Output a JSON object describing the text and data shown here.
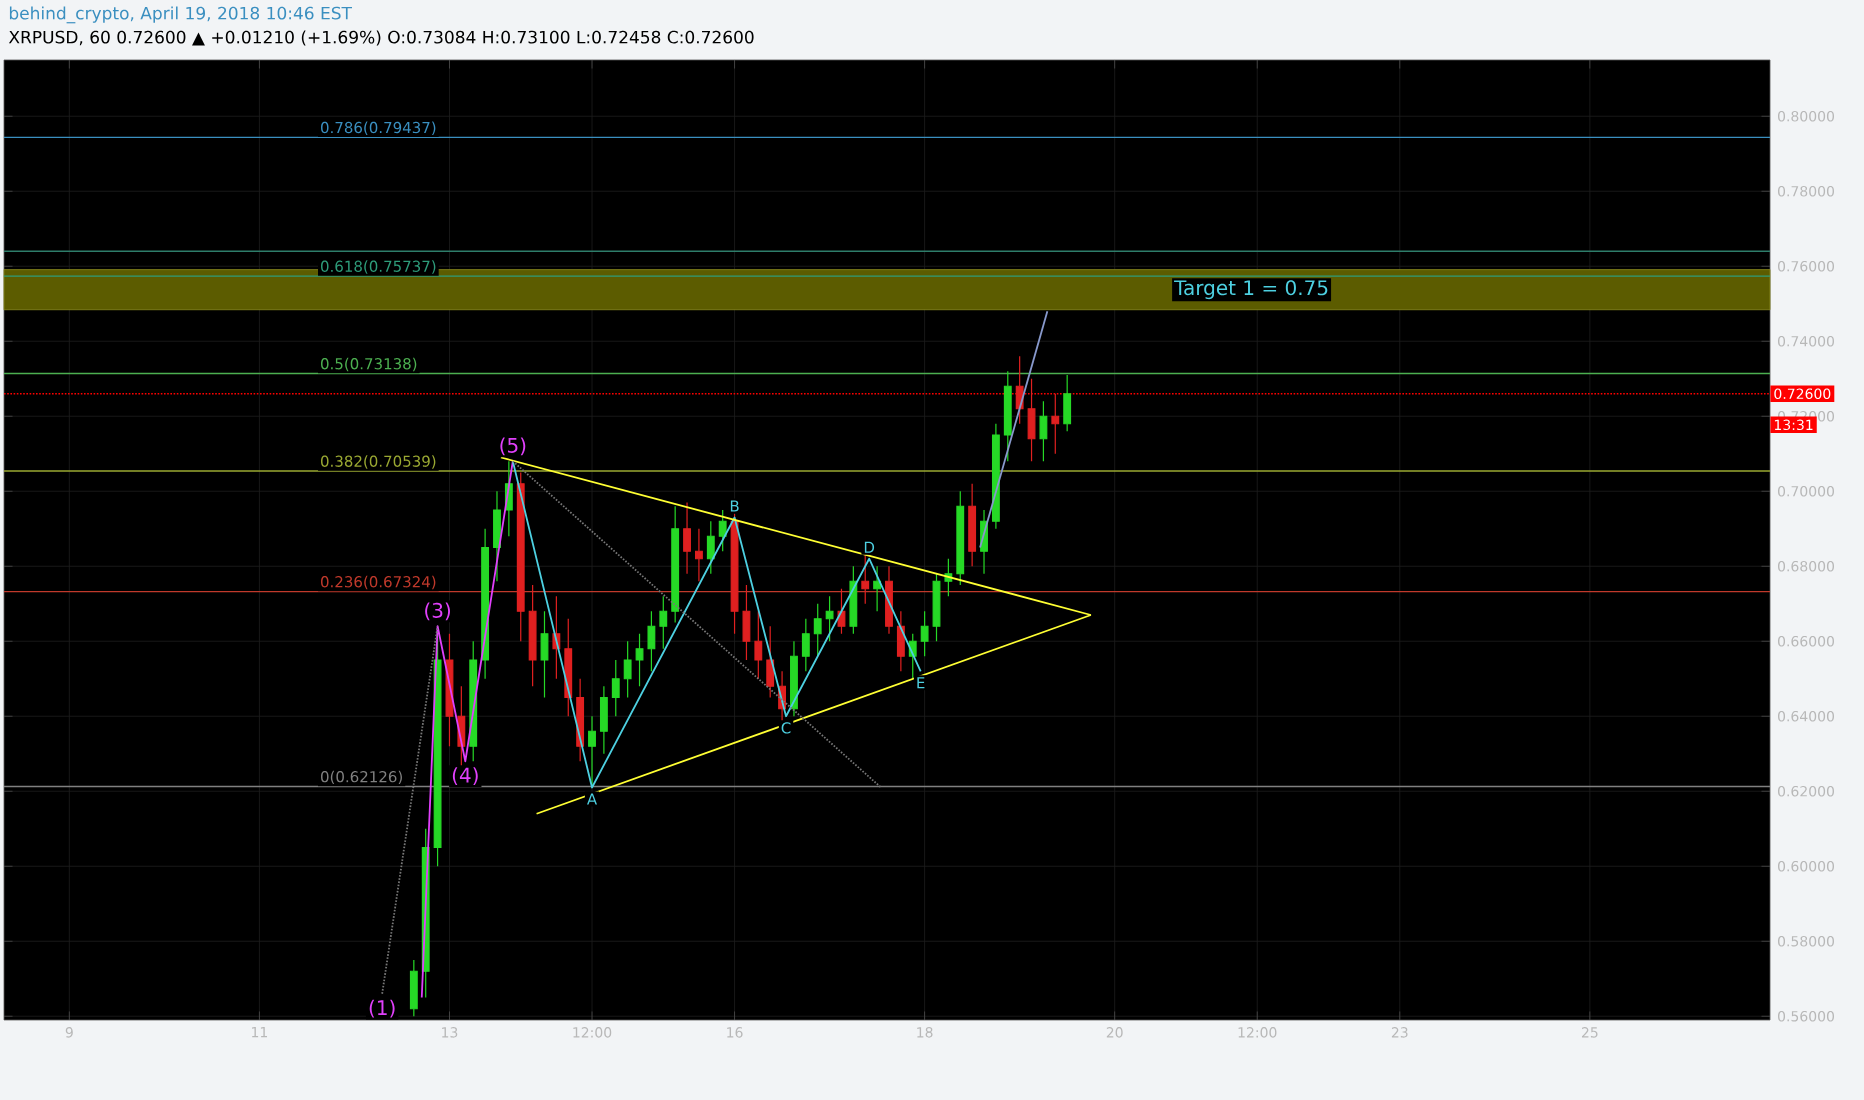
{
  "chart_data": {
    "type": "candlestick",
    "title": "behind_crypto, April 19, 2018 10:46 EST",
    "subtitle": "XRPUSD, 60 0.72600 ▲ +0.01210 (+1.69%) O:0.73084 H:0.73100 L:0.72458 C:0.72600",
    "x": [
      "2018-04-12T15:00",
      "2018-04-12T18:00",
      "2018-04-12T21:00",
      "2018-04-13T00:00",
      "2018-04-13T03:00",
      "2018-04-13T06:00",
      "2018-04-13T09:00",
      "2018-04-13T12:00",
      "2018-04-13T15:00",
      "2018-04-13T18:00",
      "2018-04-13T21:00",
      "2018-04-14T00:00",
      "2018-04-14T03:00",
      "2018-04-14T06:00",
      "2018-04-14T09:00",
      "2018-04-14T12:00",
      "2018-04-14T15:00",
      "2018-04-14T18:00",
      "2018-04-14T21:00",
      "2018-04-15T00:00",
      "2018-04-15T03:00",
      "2018-04-15T06:00",
      "2018-04-15T09:00",
      "2018-04-15T12:00",
      "2018-04-15T15:00",
      "2018-04-15T18:00",
      "2018-04-15T21:00",
      "2018-04-16T00:00",
      "2018-04-16T03:00",
      "2018-04-16T06:00",
      "2018-04-16T09:00",
      "2018-04-16T12:00",
      "2018-04-16T15:00",
      "2018-04-16T18:00",
      "2018-04-16T21:00",
      "2018-04-17T00:00",
      "2018-04-17T03:00",
      "2018-04-17T06:00",
      "2018-04-17T09:00",
      "2018-04-17T12:00",
      "2018-04-17T15:00",
      "2018-04-17T18:00",
      "2018-04-17T21:00",
      "2018-04-18T00:00",
      "2018-04-18T03:00",
      "2018-04-18T06:00",
      "2018-04-18T09:00",
      "2018-04-18T12:00",
      "2018-04-18T15:00",
      "2018-04-18T18:00",
      "2018-04-18T21:00",
      "2018-04-19T00:00",
      "2018-04-19T03:00",
      "2018-04-19T06:00",
      "2018-04-19T09:00",
      "2018-04-19T12:00"
    ],
    "ohlc": [
      [
        0.562,
        0.575,
        0.56,
        0.572
      ],
      [
        0.572,
        0.61,
        0.565,
        0.605
      ],
      [
        0.605,
        0.664,
        0.6,
        0.655
      ],
      [
        0.655,
        0.662,
        0.632,
        0.64
      ],
      [
        0.64,
        0.648,
        0.626,
        0.632
      ],
      [
        0.632,
        0.66,
        0.628,
        0.655
      ],
      [
        0.655,
        0.69,
        0.65,
        0.685
      ],
      [
        0.685,
        0.7,
        0.676,
        0.695
      ],
      [
        0.695,
        0.708,
        0.688,
        0.702
      ],
      [
        0.702,
        0.705,
        0.66,
        0.668
      ],
      [
        0.668,
        0.675,
        0.648,
        0.655
      ],
      [
        0.655,
        0.668,
        0.645,
        0.662
      ],
      [
        0.662,
        0.672,
        0.65,
        0.658
      ],
      [
        0.658,
        0.666,
        0.64,
        0.645
      ],
      [
        0.645,
        0.65,
        0.628,
        0.632
      ],
      [
        0.632,
        0.64,
        0.621,
        0.636
      ],
      [
        0.636,
        0.648,
        0.63,
        0.645
      ],
      [
        0.645,
        0.655,
        0.64,
        0.65
      ],
      [
        0.65,
        0.66,
        0.645,
        0.655
      ],
      [
        0.655,
        0.662,
        0.648,
        0.658
      ],
      [
        0.658,
        0.668,
        0.652,
        0.664
      ],
      [
        0.664,
        0.672,
        0.658,
        0.668
      ],
      [
        0.668,
        0.696,
        0.665,
        0.69
      ],
      [
        0.69,
        0.697,
        0.678,
        0.684
      ],
      [
        0.684,
        0.69,
        0.676,
        0.682
      ],
      [
        0.682,
        0.692,
        0.678,
        0.688
      ],
      [
        0.688,
        0.695,
        0.684,
        0.692
      ],
      [
        0.692,
        0.694,
        0.662,
        0.668
      ],
      [
        0.668,
        0.675,
        0.655,
        0.66
      ],
      [
        0.66,
        0.668,
        0.65,
        0.655
      ],
      [
        0.655,
        0.664,
        0.645,
        0.648
      ],
      [
        0.648,
        0.652,
        0.638,
        0.642
      ],
      [
        0.642,
        0.66,
        0.64,
        0.656
      ],
      [
        0.656,
        0.666,
        0.652,
        0.662
      ],
      [
        0.662,
        0.67,
        0.656,
        0.666
      ],
      [
        0.666,
        0.672,
        0.66,
        0.668
      ],
      [
        0.668,
        0.674,
        0.662,
        0.664
      ],
      [
        0.664,
        0.68,
        0.662,
        0.676
      ],
      [
        0.676,
        0.683,
        0.67,
        0.674
      ],
      [
        0.674,
        0.68,
        0.668,
        0.676
      ],
      [
        0.676,
        0.68,
        0.662,
        0.664
      ],
      [
        0.664,
        0.668,
        0.652,
        0.656
      ],
      [
        0.656,
        0.662,
        0.65,
        0.66
      ],
      [
        0.66,
        0.668,
        0.656,
        0.664
      ],
      [
        0.664,
        0.678,
        0.66,
        0.676
      ],
      [
        0.676,
        0.682,
        0.672,
        0.678
      ],
      [
        0.678,
        0.7,
        0.675,
        0.696
      ],
      [
        0.696,
        0.702,
        0.68,
        0.684
      ],
      [
        0.684,
        0.695,
        0.678,
        0.692
      ],
      [
        0.692,
        0.718,
        0.69,
        0.715
      ],
      [
        0.715,
        0.732,
        0.708,
        0.728
      ],
      [
        0.728,
        0.736,
        0.718,
        0.722
      ],
      [
        0.722,
        0.73,
        0.708,
        0.714
      ],
      [
        0.714,
        0.724,
        0.708,
        0.72
      ],
      [
        0.72,
        0.726,
        0.71,
        0.718
      ],
      [
        0.718,
        0.731,
        0.716,
        0.726
      ]
    ],
    "colors": [
      "#26d926",
      "#26d926",
      "#26d926",
      "#e02020",
      "#e02020",
      "#26d926",
      "#26d926",
      "#26d926",
      "#26d926",
      "#e02020",
      "#e02020",
      "#26d926",
      "#e02020",
      "#e02020",
      "#e02020",
      "#26d926",
      "#26d926",
      "#26d926",
      "#26d926",
      "#26d926",
      "#26d926",
      "#26d926",
      "#26d926",
      "#e02020",
      "#e02020",
      "#26d926",
      "#26d926",
      "#e02020",
      "#e02020",
      "#e02020",
      "#e02020",
      "#e02020",
      "#26d926",
      "#26d926",
      "#26d926",
      "#26d926",
      "#e02020",
      "#26d926",
      "#e02020",
      "#26d926",
      "#e02020",
      "#e02020",
      "#26d926",
      "#26d926",
      "#26d926",
      "#26d926",
      "#26d926",
      "#e02020",
      "#26d926",
      "#26d926",
      "#26d926",
      "#e02020",
      "#e02020",
      "#26d926",
      "#e02020",
      "#26d926"
    ],
    "series": [
      {
        "type": "line",
        "color": "#777777",
        "line_style": "dotted",
        "x": [
          "2018-04-12T07:00",
          "2018-04-12T21:00"
        ],
        "values": [
          0.566,
          0.664
        ]
      },
      {
        "type": "line",
        "color": "#e040fb",
        "x": [
          "2018-04-12T17:00",
          "2018-04-12T21:00",
          "2018-04-13T04:00",
          "2018-04-13T16:00"
        ],
        "values": [
          0.565,
          0.664,
          0.628,
          0.708
        ]
      },
      {
        "type": "line",
        "color": "#4dd0e1",
        "x": [
          "2018-04-13T16:00",
          "2018-04-14T12:00",
          "2018-04-16T00:00",
          "2018-04-16T13:00",
          "2018-04-17T10:00",
          "2018-04-17T23:00"
        ],
        "values": [
          0.708,
          0.621,
          0.693,
          0.64,
          0.682,
          0.652
        ]
      },
      {
        "type": "line",
        "color": "#ffff33",
        "x": [
          "2018-04-13T13:00",
          "2018-04-19T18:00"
        ],
        "values": [
          0.709,
          0.667
        ]
      },
      {
        "type": "line",
        "color": "#ffff33",
        "x": [
          "2018-04-13T22:00",
          "2018-04-19T18:00"
        ],
        "values": [
          0.614,
          0.667
        ]
      },
      {
        "type": "line",
        "color": "#777777",
        "line_style": "dotted",
        "x": [
          "2018-04-13T16:00",
          "2018-04-17T13:00"
        ],
        "values": [
          0.708,
          0.621
        ]
      },
      {
        "type": "line",
        "color": "#8899cc",
        "x": [
          "2018-04-18T14:00",
          "2018-04-19T07:00"
        ],
        "values": [
          0.685,
          0.748
        ]
      }
    ],
    "ref_lines": [
      {
        "axis": "y",
        "value": 0.79437,
        "label": "0.786(0.79437)",
        "color": "#3a8fc0"
      },
      {
        "axis": "y",
        "value": 0.764,
        "color": "#2e7d6a"
      },
      {
        "axis": "y",
        "value": 0.75737,
        "label": "0.618(0.75737)",
        "color": "#2e9c7a"
      },
      {
        "axis": "y",
        "value": 0.73138,
        "label": "0.5(0.73138)",
        "color": "#4caf50"
      },
      {
        "axis": "y",
        "value": 0.70539,
        "label": "0.382(0.70539)",
        "color": "#9aa832"
      },
      {
        "axis": "y",
        "value": 0.67324,
        "label": "0.236(0.67324)",
        "color": "#c0392b"
      },
      {
        "axis": "y",
        "value": 0.62126,
        "label": "0(0.62126)",
        "color": "#808080"
      },
      {
        "axis": "y",
        "value": 0.726,
        "label": "0.72600",
        "color": "#ff0000",
        "line_style": "dotted"
      }
    ],
    "bands": [
      {
        "axis": "y",
        "from": 0.7484,
        "to": 0.7591,
        "label": "Target 1 = 0.75",
        "color": "#5c5c00"
      }
    ],
    "annotations": [
      {
        "text": "(1)",
        "x": "2018-04-12T07:00",
        "y": 0.566
      },
      {
        "text": "(3)",
        "x": "2018-04-12T21:00",
        "y": 0.664
      },
      {
        "text": "(4)",
        "x": "2018-04-13T04:00",
        "y": 0.628
      },
      {
        "text": "(5)",
        "x": "2018-04-13T16:00",
        "y": 0.708
      },
      {
        "text": "A",
        "x": "2018-04-14T12:00",
        "y": 0.621
      },
      {
        "text": "B",
        "x": "2018-04-16T00:00",
        "y": 0.693
      },
      {
        "text": "C",
        "x": "2018-04-16T13:00",
        "y": 0.64
      },
      {
        "text": "D",
        "x": "2018-04-17T10:00",
        "y": 0.682
      },
      {
        "text": "E",
        "x": "2018-04-17T23:00",
        "y": 0.652
      },
      "13:31"
    ],
    "xlim": [
      "2018-04-08T07:30",
      "2018-04-26T21:30"
    ],
    "ylim": [
      0.559,
      0.815
    ],
    "xticks": [
      {
        "value": "2018-04-09",
        "label": "9"
      },
      {
        "value": "2018-04-11",
        "label": "11"
      },
      {
        "value": "2018-04-13",
        "label": "13"
      },
      {
        "value": "2018-04-14T12:00",
        "label": "12:00"
      },
      {
        "value": "2018-04-16",
        "label": "16"
      },
      {
        "value": "2018-04-18",
        "label": "18"
      },
      {
        "value": "2018-04-20",
        "label": "20"
      },
      {
        "value": "2018-04-21T12:00",
        "label": "12:00"
      },
      {
        "value": "2018-04-23",
        "label": "23"
      },
      {
        "value": "2018-04-25",
        "label": "25"
      }
    ],
    "yticks": [
      {
        "value": 0.56,
        "label": "0.56000"
      },
      {
        "value": 0.58,
        "label": "0.58000"
      },
      {
        "value": 0.6,
        "label": "0.60000"
      },
      {
        "value": 0.62,
        "label": "0.62000"
      },
      {
        "value": 0.64,
        "label": "0.64000"
      },
      {
        "value": 0.66,
        "label": "0.66000"
      },
      {
        "value": 0.68,
        "label": "0.68000"
      },
      {
        "value": 0.7,
        "label": "0.70000"
      },
      {
        "value": 0.72,
        "label": "0.72000"
      },
      {
        "value": 0.74,
        "label": "0.74000"
      },
      {
        "value": 0.76,
        "label": "0.76000"
      },
      {
        "value": 0.78,
        "label": "0.78000"
      },
      {
        "value": 0.8,
        "label": "0.80000"
      }
    ],
    "grid": true
  }
}
